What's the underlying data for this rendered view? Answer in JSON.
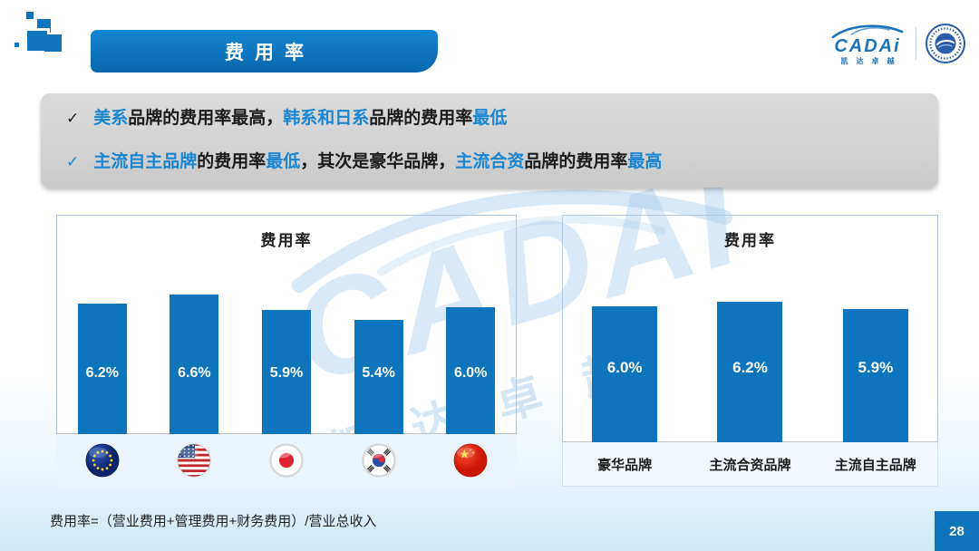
{
  "slide": {
    "title": "费用率",
    "footnote": "费用率=（营业费用+管理费用+财务费用）/营业总收入",
    "page_number": "28"
  },
  "logo": {
    "brand": "CADAi",
    "subtitle": "凯达卓越"
  },
  "watermark": {
    "brand": "CADAI",
    "chars": "凯达卓越"
  },
  "bullets": [
    {
      "check": "✓",
      "check_style": "dark",
      "segments": [
        {
          "text": "美系",
          "style": "accent"
        },
        {
          "text": "品牌的费用率最高，",
          "style": "dark"
        },
        {
          "text": "韩系和日系",
          "style": "accent"
        },
        {
          "text": "品牌的费用率",
          "style": "dark"
        },
        {
          "text": "最低",
          "style": "accent"
        }
      ]
    },
    {
      "check": "✓",
      "check_style": "accent",
      "segments": [
        {
          "text": "主流自主品牌",
          "style": "accent"
        },
        {
          "text": "的费用率",
          "style": "dark"
        },
        {
          "text": "最低",
          "style": "accent"
        },
        {
          "text": "，其次是豪华品牌，",
          "style": "dark"
        },
        {
          "text": "主流合资",
          "style": "accent"
        },
        {
          "text": "品牌的费用率",
          "style": "dark"
        },
        {
          "text": "最高",
          "style": "accent"
        }
      ]
    }
  ],
  "chart_data": [
    {
      "type": "bar",
      "title": "费用率",
      "categories": [
        "欧系",
        "美系",
        "日系",
        "韩系",
        "中国"
      ],
      "flag_icons": [
        "eu-flag-icon",
        "us-flag-icon",
        "japan-flag-icon",
        "korea-flag-icon",
        "china-flag-icon"
      ],
      "values": [
        6.2,
        6.6,
        5.9,
        5.4,
        6.0
      ],
      "unit": "%",
      "ylim": [
        0,
        7
      ],
      "grid": false,
      "legend": "none",
      "value_labels_inside_bars": true
    },
    {
      "type": "bar",
      "title": "费用率",
      "categories": [
        "豪华品牌",
        "主流合资品牌",
        "主流自主品牌"
      ],
      "values": [
        6.0,
        6.2,
        5.9
      ],
      "unit": "%",
      "ylim": [
        0,
        7
      ],
      "grid": false,
      "legend": "none",
      "value_labels_inside_bars": true
    }
  ],
  "colors": {
    "accent": "#1a86d2",
    "bar": "#0e74bc",
    "dark": "#1b1b1b",
    "ribbon": "#0d74bd",
    "callout_bg": "#d2d2d2",
    "flag_strip_bg": "#ecf4fb"
  }
}
